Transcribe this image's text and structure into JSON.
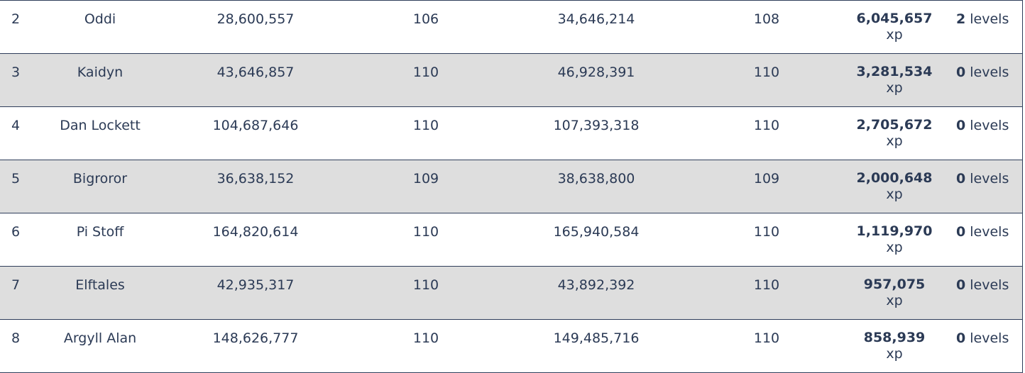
{
  "rows": [
    {
      "rank": "2",
      "name": "Oddi",
      "start_xp": "28,600,557",
      "start_level": "106",
      "end_xp": "34,646,214",
      "end_level": "108",
      "gained": "6,045,657",
      "gained_unit": "xp",
      "levels_num": "2",
      "levels_unit": "levels"
    },
    {
      "rank": "3",
      "name": "Kaidyn",
      "start_xp": "43,646,857",
      "start_level": "110",
      "end_xp": "46,928,391",
      "end_level": "110",
      "gained": "3,281,534",
      "gained_unit": "xp",
      "levels_num": "0",
      "levels_unit": "levels"
    },
    {
      "rank": "4",
      "name": "Dan Lockett",
      "start_xp": "104,687,646",
      "start_level": "110",
      "end_xp": "107,393,318",
      "end_level": "110",
      "gained": "2,705,672",
      "gained_unit": "xp",
      "levels_num": "0",
      "levels_unit": "levels"
    },
    {
      "rank": "5",
      "name": "Bigroror",
      "start_xp": "36,638,152",
      "start_level": "109",
      "end_xp": "38,638,800",
      "end_level": "109",
      "gained": "2,000,648",
      "gained_unit": "xp",
      "levels_num": "0",
      "levels_unit": "levels"
    },
    {
      "rank": "6",
      "name": "Pi Stoff",
      "start_xp": "164,820,614",
      "start_level": "110",
      "end_xp": "165,940,584",
      "end_level": "110",
      "gained": "1,119,970",
      "gained_unit": "xp",
      "levels_num": "0",
      "levels_unit": "levels"
    },
    {
      "rank": "7",
      "name": "Elftales",
      "start_xp": "42,935,317",
      "start_level": "110",
      "end_xp": "43,892,392",
      "end_level": "110",
      "gained": "957,075",
      "gained_unit": "xp",
      "levels_num": "0",
      "levels_unit": "levels"
    },
    {
      "rank": "8",
      "name": "Argyll Alan",
      "start_xp": "148,626,777",
      "start_level": "110",
      "end_xp": "149,485,716",
      "end_level": "110",
      "gained": "858,939",
      "gained_unit": "xp",
      "levels_num": "0",
      "levels_unit": "levels"
    }
  ]
}
